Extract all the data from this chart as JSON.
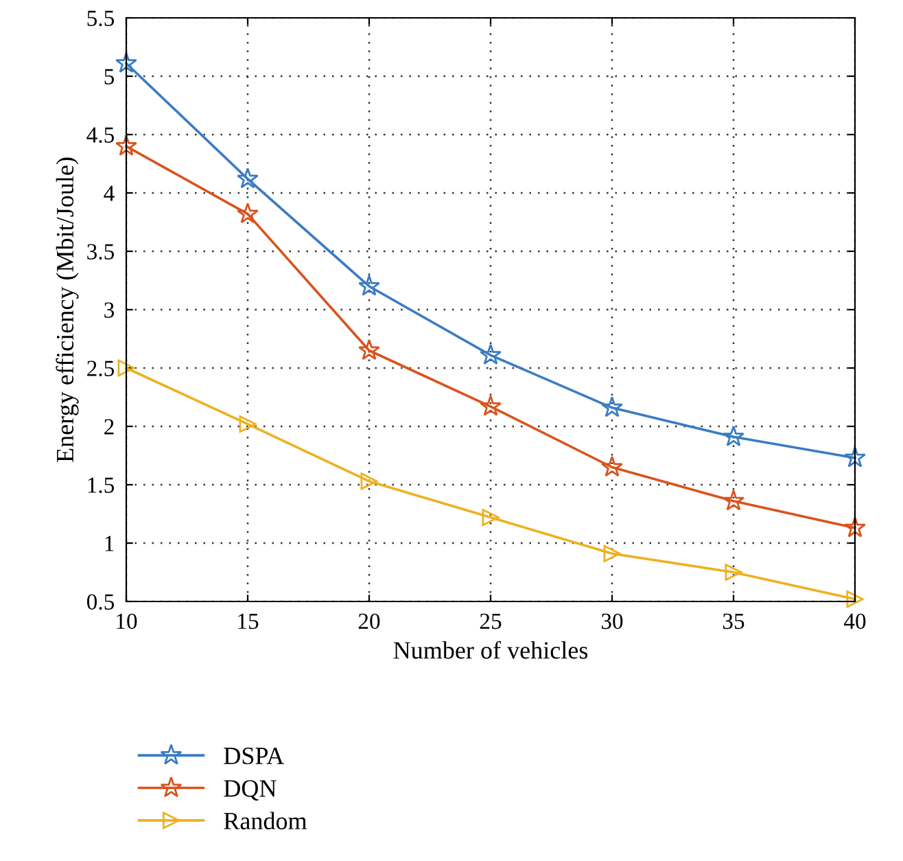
{
  "chart_data": {
    "type": "line",
    "xlabel": "Number of vehicles",
    "ylabel": "Energy efficiency (Mbit/Joule)",
    "x": [
      10,
      15,
      20,
      25,
      30,
      35,
      40
    ],
    "series": [
      {
        "name": "DSPA",
        "color": "#3a7cc2",
        "marker": "star",
        "values": [
          5.11,
          4.12,
          3.2,
          2.61,
          2.16,
          1.91,
          1.73
        ]
      },
      {
        "name": "DQN",
        "color": "#d9531e",
        "marker": "star",
        "values": [
          4.4,
          3.82,
          2.65,
          2.17,
          1.65,
          1.36,
          1.13
        ]
      },
      {
        "name": "Random",
        "color": "#edb120",
        "marker": "triangle",
        "values": [
          2.5,
          2.02,
          1.53,
          1.22,
          0.91,
          0.75,
          0.52
        ]
      }
    ],
    "xlim": [
      10,
      40
    ],
    "xticks": [
      10,
      15,
      20,
      25,
      30,
      35,
      40
    ],
    "ylim": [
      0.5,
      5.5
    ],
    "yticks": [
      0.5,
      1,
      1.5,
      2,
      2.5,
      3,
      3.5,
      4,
      4.5,
      5,
      5.5
    ],
    "grid": true,
    "legend": "bottom left",
    "line_style": "solid"
  }
}
